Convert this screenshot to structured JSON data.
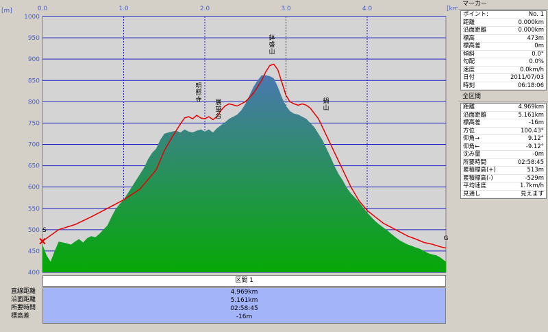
{
  "chart_data": {
    "type": "area",
    "title": "",
    "xlabel": "",
    "ylabel": "",
    "x_unit": "[km]",
    "y_unit": "[m]",
    "xlim": [
      0,
      5
    ],
    "ylim": [
      400,
      1000
    ],
    "x_ticks": [
      "0.0",
      "1.0",
      "2.0",
      "3.0",
      "4.0"
    ],
    "y_ticks": [
      "400",
      "450",
      "500",
      "550",
      "600",
      "650",
      "700",
      "750",
      "800",
      "850",
      "900",
      "950",
      "1000"
    ],
    "grid": true,
    "colors": {
      "plot_bg": "#d4d4d4",
      "grid_h": "#2020c0",
      "grid_v": "#2020c0",
      "area_top": "#4a78b0",
      "area_bottom": "#06a806",
      "route_line": "#e80000",
      "tick_label": "#4a60c8"
    },
    "series": [
      {
        "x": [
          0.0,
          0.05,
          0.1,
          0.15,
          0.2,
          0.25,
          0.3,
          0.35,
          0.4,
          0.45,
          0.5,
          0.55,
          0.6,
          0.65,
          0.7,
          0.75,
          0.8,
          0.85,
          0.9,
          0.95,
          1.0,
          1.05,
          1.1,
          1.15,
          1.2,
          1.25,
          1.3,
          1.35,
          1.4,
          1.45,
          1.5,
          1.55,
          1.6,
          1.65,
          1.7,
          1.75,
          1.8,
          1.85,
          1.9,
          1.95,
          2.0,
          2.05,
          2.1,
          2.15,
          2.2,
          2.25,
          2.3,
          2.35,
          2.4,
          2.45,
          2.5,
          2.55,
          2.6,
          2.65,
          2.7,
          2.75,
          2.8,
          2.85,
          2.9,
          2.95,
          3.0,
          3.05,
          3.1,
          3.15,
          3.2,
          3.25,
          3.3,
          3.35,
          3.4,
          3.45,
          3.5,
          3.55,
          3.6,
          3.65,
          3.7,
          3.75,
          3.8,
          3.85,
          3.9,
          3.95,
          4.0,
          4.05,
          4.1,
          4.15,
          4.2,
          4.25,
          4.3,
          4.35,
          4.4,
          4.45,
          4.5,
          4.55,
          4.6,
          4.65,
          4.7,
          4.75,
          4.8,
          4.85,
          4.9,
          4.97
        ],
        "values": [
          465,
          440,
          425,
          450,
          472,
          470,
          468,
          465,
          472,
          478,
          470,
          480,
          485,
          482,
          490,
          500,
          510,
          530,
          548,
          560,
          570,
          585,
          600,
          615,
          630,
          645,
          665,
          680,
          690,
          710,
          725,
          728,
          730,
          732,
          728,
          735,
          730,
          728,
          732,
          735,
          730,
          735,
          728,
          738,
          745,
          752,
          760,
          765,
          770,
          780,
          795,
          815,
          835,
          850,
          862,
          862,
          860,
          855,
          835,
          810,
          790,
          778,
          772,
          770,
          765,
          760,
          750,
          740,
          725,
          710,
          690,
          670,
          648,
          630,
          615,
          598,
          585,
          575,
          565,
          552,
          540,
          530,
          520,
          512,
          505,
          498,
          490,
          482,
          475,
          470,
          465,
          462,
          458,
          455,
          450,
          445,
          442,
          440,
          435,
          425
        ]
      },
      {
        "x": [
          0.0,
          0.2,
          0.4,
          0.6,
          0.8,
          1.0,
          1.2,
          1.4,
          1.5,
          1.6,
          1.7,
          1.75,
          1.8,
          1.85,
          1.9,
          1.95,
          2.0,
          2.05,
          2.1,
          2.15,
          2.2,
          2.25,
          2.3,
          2.4,
          2.5,
          2.6,
          2.7,
          2.75,
          2.8,
          2.85,
          2.9,
          2.95,
          3.0,
          3.05,
          3.1,
          3.15,
          3.2,
          3.25,
          3.3,
          3.4,
          3.5,
          3.6,
          3.7,
          3.8,
          3.9,
          4.0,
          4.1,
          4.2,
          4.3,
          4.4,
          4.5,
          4.6,
          4.7,
          4.8,
          4.9,
          4.97
        ],
        "values": [
          473,
          500,
          512,
          530,
          550,
          570,
          595,
          640,
          685,
          718,
          748,
          762,
          765,
          760,
          768,
          762,
          760,
          765,
          758,
          765,
          780,
          790,
          795,
          790,
          800,
          820,
          850,
          870,
          885,
          888,
          875,
          845,
          815,
          800,
          795,
          792,
          795,
          792,
          785,
          760,
          720,
          680,
          640,
          600,
          568,
          545,
          530,
          515,
          505,
          495,
          485,
          478,
          470,
          466,
          460,
          457
        ]
      }
    ],
    "annotations": [
      "鉢盛山",
      "明照寺",
      "展望台",
      "鍋山"
    ],
    "start_marker": "S",
    "end_marker": "G"
  },
  "section": {
    "title": "区間 1"
  },
  "summary": {
    "labels": [
      "直線距離",
      "沿面距離",
      "所要時間",
      "標高差"
    ],
    "values": [
      "4.969km",
      "5.161km",
      "02:58:45",
      "-16m"
    ]
  },
  "marker_panel": {
    "header": "マーカー",
    "rows": [
      {
        "label": "ポイント:",
        "value": "No. 1"
      },
      {
        "label": "距離",
        "value": "0.000km"
      },
      {
        "label": "沿面距離",
        "value": "0.000km"
      },
      {
        "label": "標高",
        "value": "473m"
      },
      {
        "label": "標高差",
        "value": "0m"
      },
      {
        "label": "傾斜",
        "value": "0.0°"
      },
      {
        "label": "勾配",
        "value": "0.0%"
      },
      {
        "label": "速度",
        "value": "0.0km/h"
      },
      {
        "label": "日付",
        "value": "2011/07/03"
      },
      {
        "label": "時刻",
        "value": "06:18:06"
      }
    ]
  },
  "full_panel": {
    "header": "全区間",
    "rows": [
      {
        "label": "距離",
        "value": "4.969km"
      },
      {
        "label": "沿面距離",
        "value": "5.161km"
      },
      {
        "label": "標高差",
        "value": "-16m"
      },
      {
        "label": "方位",
        "value": "100.43°"
      },
      {
        "label": "仰角→",
        "value": "9.12°"
      },
      {
        "label": "仰角←",
        "value": "-9.12°"
      },
      {
        "label": "沈み量",
        "value": "-0m"
      },
      {
        "label": "所要時間",
        "value": "02:58:45"
      },
      {
        "label": "累積標高(+)",
        "value": "513m"
      },
      {
        "label": "累積標高(-)",
        "value": "-529m"
      },
      {
        "label": "平均速度",
        "value": "1.7km/h"
      },
      {
        "label": "見通し",
        "value": "見えます"
      }
    ]
  }
}
